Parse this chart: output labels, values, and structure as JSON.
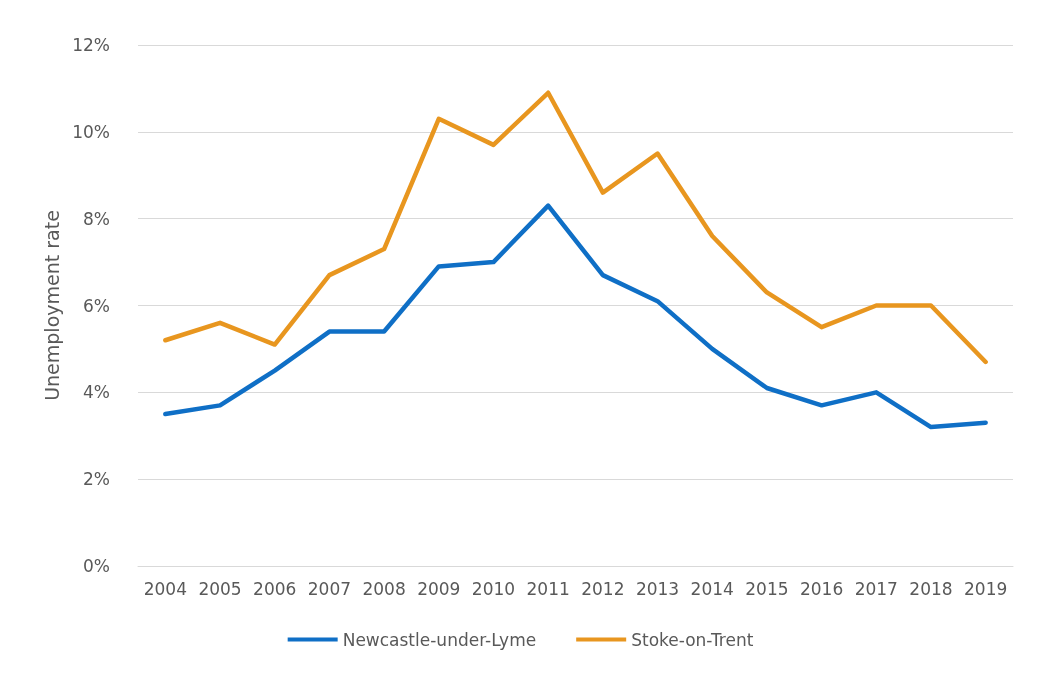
{
  "chart_data": {
    "type": "line",
    "ylabel": "Unemployment rate",
    "categories": [
      "2004",
      "2005",
      "2006",
      "2007",
      "2008",
      "2009",
      "2010",
      "2011",
      "2012",
      "2013",
      "2014",
      "2015",
      "2016",
      "2017",
      "2018",
      "2019"
    ],
    "series": [
      {
        "name": "Newcastle-under-Lyme",
        "color": "#0f6fc6",
        "values": [
          3.5,
          3.7,
          4.5,
          5.4,
          5.4,
          6.9,
          7.0,
          8.3,
          6.7,
          6.1,
          5.0,
          4.1,
          3.7,
          4.0,
          3.2,
          3.3
        ]
      },
      {
        "name": "Stoke-on-Trent",
        "color": "#e8961f",
        "values": [
          5.2,
          5.6,
          5.1,
          6.7,
          7.3,
          10.3,
          9.7,
          10.9,
          8.6,
          9.5,
          7.6,
          6.3,
          5.5,
          6.0,
          6.0,
          4.7
        ]
      }
    ],
    "ylim": [
      0,
      12
    ],
    "yticks": [
      {
        "value": 0,
        "label": "0%"
      },
      {
        "value": 2,
        "label": "2%"
      },
      {
        "value": 4,
        "label": "4%"
      },
      {
        "value": 6,
        "label": "6%"
      },
      {
        "value": 8,
        "label": "8%"
      },
      {
        "value": 10,
        "label": "10%"
      },
      {
        "value": 12,
        "label": "12%"
      }
    ],
    "grid": "y",
    "legend": "bottom",
    "marker": "none",
    "line_style": "solid"
  }
}
